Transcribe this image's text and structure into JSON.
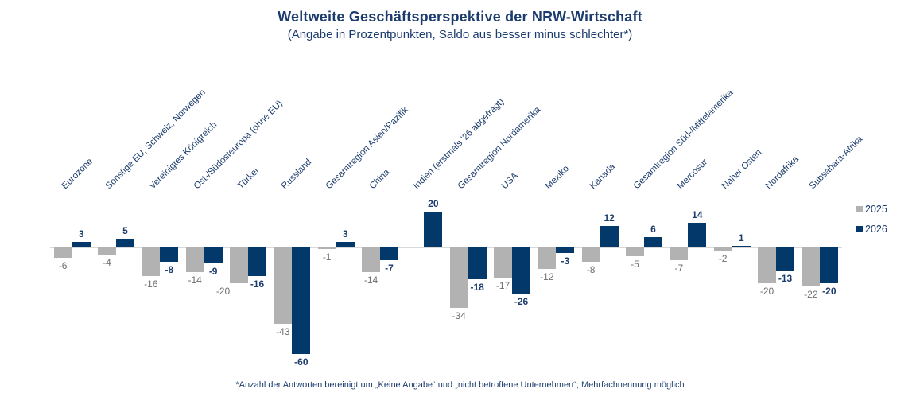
{
  "title": "Weltweite Geschäftsperspektive der NRW-Wirtschaft",
  "subtitle": "(Angabe in Prozentpunkten, Saldo aus besser minus schlechter*)",
  "footnote": "*Anzahl der Antworten bereinigt um „Keine Angabe“ und „nicht betroffene Unternehmen“; Mehrfachnennung möglich",
  "colors": {
    "series_2025": "#b2b2b2",
    "series_2026": "#03386a",
    "label_2025": "#6f6f6f",
    "label_2026": "#1c3c6e",
    "text_navy": "#1c3c6e",
    "axis_line": "#d9d9d9",
    "background": "#ffffff"
  },
  "chart_data": {
    "type": "bar",
    "title": "Weltweite Geschäftsperspektive der NRW-Wirtschaft",
    "subtitle": "(Angabe in Prozentpunkten, Saldo aus besser minus schlechter*)",
    "categories": [
      "Eurozone",
      "Sonstige EU, Schweiz, Norwegen",
      "Vereinigtes Königreich",
      "Ost-/Südosteuropa (ohne EU)",
      "Türkei",
      "Russland",
      "Gesamtregion Asien/Pazifik",
      "China",
      "Indien (erstmals '26 abgefragt)",
      "Gesamtregion Nordamerika",
      "USA",
      "Mexiko",
      "Kanada",
      "Gesamtregion Süd-/Mittelamerika",
      "Mercosur",
      "Naher Osten",
      "Nordafrika",
      "Subsahara-Afrika"
    ],
    "series": [
      {
        "name": "2025",
        "color": "#b2b2b2",
        "label_color": "#6f6f6f",
        "values": [
          -6,
          -4,
          -16,
          -14,
          -20,
          -43,
          -1,
          -14,
          null,
          -34,
          -17,
          -12,
          -8,
          -5,
          -7,
          -2,
          -20,
          -22
        ]
      },
      {
        "name": "2026",
        "color": "#03386a",
        "label_color": "#1c3c6e",
        "values": [
          3,
          5,
          -8,
          -9,
          -16,
          -60,
          3,
          -7,
          20,
          -18,
          -26,
          -3,
          12,
          6,
          14,
          1,
          -13,
          -20
        ]
      }
    ],
    "ylim": [
      -60,
      20
    ],
    "grid": false,
    "value_labels": true,
    "legend_position": "right",
    "xlabel": "",
    "ylabel": ""
  }
}
